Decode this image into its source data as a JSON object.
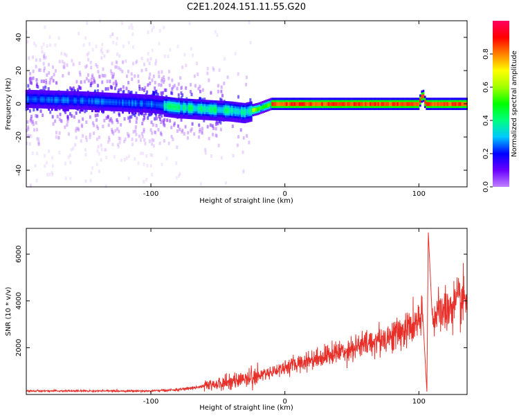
{
  "figure": {
    "title": "C2E1.2024.151.11.55.G20"
  },
  "chart_data": [
    {
      "type": "heatmap",
      "xlabel": "Height of straight line (km)",
      "ylabel": "Frequency (Hz)",
      "xlim": [
        -193,
        136
      ],
      "ylim": [
        -50,
        50
      ],
      "xticks": [
        -100,
        0,
        100
      ],
      "yticks": [
        -40,
        -20,
        0,
        20,
        40
      ],
      "colorbar": {
        "label": "Normalized spectral amplitude",
        "range": [
          0,
          1
        ],
        "ticks": [
          0.0,
          0.2,
          0.4,
          0.6,
          0.8
        ],
        "tick_labels": [
          "0.0",
          "0.2",
          "0.4",
          "0.6",
          "0.8"
        ],
        "colormap": [
          "#c080ff",
          "#6a00ff",
          "#0000ff",
          "#00c8ff",
          "#00ff80",
          "#00ff00",
          "#a0ff00",
          "#ffff00",
          "#ff8000",
          "#ff0000",
          "#ff0060"
        ]
      },
      "ridge": {
        "description_points": [
          {
            "x": -193,
            "y": 3
          },
          {
            "x": -150,
            "y": 2
          },
          {
            "x": -100,
            "y": 0
          },
          {
            "x": -80,
            "y": -2
          },
          {
            "x": -60,
            "y": -3
          },
          {
            "x": -40,
            "y": -4
          },
          {
            "x": -30,
            "y": -5
          },
          {
            "x": -20,
            "y": -3
          },
          {
            "x": -10,
            "y": 0
          },
          {
            "x": 0,
            "y": 0
          },
          {
            "x": 50,
            "y": 0
          },
          {
            "x": 100,
            "y": 0
          },
          {
            "x": 103,
            "y": 6
          },
          {
            "x": 105,
            "y": 0
          },
          {
            "x": 136,
            "y": 0
          }
        ]
      }
    },
    {
      "type": "line",
      "xlabel": "Height of straight line (km)",
      "ylabel": "SNR (10 * v/v)",
      "xlim": [
        -193,
        136
      ],
      "ylim": [
        0,
        7100
      ],
      "xticks": [
        -100,
        0,
        100
      ],
      "yticks": [
        2000,
        4000,
        6000
      ],
      "series": [
        {
          "color": "#e8302a",
          "trend": [
            {
              "x": -193,
              "y": 150
            },
            {
              "x": -100,
              "y": 150
            },
            {
              "x": -80,
              "y": 200
            },
            {
              "x": -60,
              "y": 350
            },
            {
              "x": -40,
              "y": 550
            },
            {
              "x": -20,
              "y": 800
            },
            {
              "x": 0,
              "y": 1150
            },
            {
              "x": 20,
              "y": 1500
            },
            {
              "x": 40,
              "y": 1800
            },
            {
              "x": 60,
              "y": 2150
            },
            {
              "x": 80,
              "y": 2500
            },
            {
              "x": 95,
              "y": 2900
            },
            {
              "x": 100,
              "y": 3100
            },
            {
              "x": 103,
              "y": 3300
            },
            {
              "x": 106,
              "y": 100
            },
            {
              "x": 107,
              "y": 7000
            },
            {
              "x": 110,
              "y": 3300
            },
            {
              "x": 120,
              "y": 3600
            },
            {
              "x": 136,
              "y": 4100
            }
          ]
        }
      ]
    }
  ]
}
